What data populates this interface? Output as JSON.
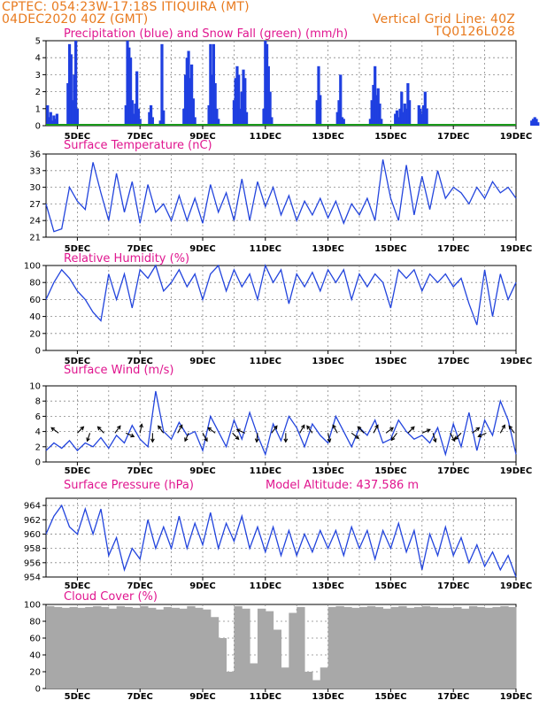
{
  "header": {
    "line1_left": "CPTEC:   054:23W-17:18S   ITIQUIRA (MT)",
    "line2_left": "04DEC2020 40Z (GMT)",
    "line2_right": "Vertical Grid Line: 40Z",
    "line3_right": "TQ0126L028"
  },
  "colors": {
    "title": "#e0168f",
    "header": "#e87a1e",
    "precip": "#1f3fe0",
    "snow": "#1a9a1a",
    "line": "#2244dd",
    "cloud": "#a8a8a8",
    "arrow": "#000000"
  },
  "chart_data": [
    {
      "type": "bar",
      "title": "Precipitation (blue) and Snow Fall (green) (mm/h)",
      "x_unit": "days from 04DEC2020 00Z",
      "x_ticks": [
        "5DEC",
        "7DEC",
        "9DEC",
        "11DEC",
        "13DEC",
        "15DEC",
        "17DEC",
        "19DEC"
      ],
      "xlim": [
        0,
        15
      ],
      "ylim": [
        0,
        5
      ],
      "yticks": [
        0,
        1,
        2,
        3,
        4,
        5
      ],
      "series": [
        {
          "name": "Precipitation",
          "x": [
            0.05,
            0.1,
            0.15,
            0.2,
            0.25,
            0.3,
            0.35,
            0.7,
            0.75,
            0.8,
            0.85,
            0.9,
            0.95,
            1.0,
            2.55,
            2.6,
            2.65,
            2.7,
            2.75,
            2.8,
            2.85,
            2.9,
            2.95,
            3.0,
            3.3,
            3.35,
            3.4,
            3.65,
            3.7,
            3.75,
            4.4,
            4.45,
            4.5,
            4.55,
            4.6,
            4.65,
            4.7,
            4.75,
            5.2,
            5.25,
            5.3,
            5.35,
            5.4,
            5.45,
            5.5,
            6.0,
            6.05,
            6.1,
            6.15,
            6.2,
            6.25,
            6.3,
            6.35,
            6.4,
            6.95,
            7.0,
            7.05,
            7.1,
            7.15,
            7.2,
            8.65,
            8.7,
            8.75,
            9.3,
            9.35,
            9.4,
            9.45,
            9.5,
            10.35,
            10.4,
            10.45,
            10.5,
            10.55,
            10.6,
            10.65,
            10.7,
            11.15,
            11.2,
            11.25,
            11.3,
            11.35,
            11.4,
            11.45,
            11.5,
            11.55,
            11.6,
            11.9,
            11.95,
            12.0,
            12.05,
            12.1,
            12.15,
            15.5,
            15.55,
            15.6,
            15.65,
            15.7
          ],
          "values": [
            1.2,
            0.5,
            0.8,
            0.3,
            0.6,
            0.4,
            0.7,
            2.5,
            4.8,
            4.2,
            1.5,
            3.0,
            5.0,
            1.0,
            1.2,
            5.0,
            4.6,
            4.0,
            1.5,
            0.7,
            1.3,
            3.2,
            1.0,
            0.4,
            0.8,
            1.2,
            0.5,
            0.3,
            4.8,
            0.9,
            1.0,
            3.0,
            4.0,
            4.4,
            2.8,
            3.6,
            1.6,
            0.5,
            1.2,
            4.8,
            3.0,
            4.8,
            2.5,
            1.0,
            0.4,
            1.5,
            2.8,
            3.5,
            3.0,
            1.0,
            2.0,
            3.3,
            2.8,
            0.8,
            1.0,
            5.0,
            4.8,
            3.5,
            2.0,
            0.5,
            1.5,
            3.5,
            1.8,
            0.8,
            1.5,
            3.0,
            0.5,
            0.4,
            0.4,
            1.5,
            2.4,
            3.5,
            1.8,
            2.2,
            1.3,
            0.4,
            0.7,
            0.9,
            0.5,
            1.0,
            2.0,
            0.8,
            1.3,
            1.0,
            2.5,
            1.5,
            1.2,
            1.0,
            0.7,
            1.2,
            2.0,
            1.0,
            0.3,
            0.4,
            0.5,
            0.4,
            0.2
          ]
        },
        {
          "name": "Snow Fall",
          "x": [
            0,
            15
          ],
          "values": [
            0.05,
            0.05
          ]
        }
      ]
    },
    {
      "type": "line",
      "title": "Surface Temperature (nC)",
      "xlim": [
        0,
        15
      ],
      "ylim": [
        21,
        36
      ],
      "yticks": [
        21,
        24,
        27,
        30,
        33,
        36
      ],
      "series": [
        {
          "name": "Temperature",
          "x": [
            0,
            0.25,
            0.5,
            0.75,
            1,
            1.25,
            1.5,
            1.75,
            2,
            2.25,
            2.5,
            2.75,
            3,
            3.25,
            3.5,
            3.75,
            4,
            4.25,
            4.5,
            4.75,
            5,
            5.25,
            5.5,
            5.75,
            6,
            6.25,
            6.5,
            6.75,
            7,
            7.25,
            7.5,
            7.75,
            8,
            8.25,
            8.5,
            8.75,
            9,
            9.25,
            9.5,
            9.75,
            10,
            10.25,
            10.5,
            10.75,
            11,
            11.25,
            11.5,
            11.75,
            12,
            12.25,
            12.5,
            12.75,
            13,
            13.25,
            13.5,
            13.75,
            14,
            14.25,
            14.5,
            14.75,
            15
          ],
          "values": [
            27,
            22,
            22.5,
            30,
            27.5,
            26,
            34.5,
            29,
            24,
            32.5,
            25.5,
            31,
            23.5,
            30.5,
            25.5,
            27,
            24,
            28.5,
            24,
            28,
            23.5,
            30.5,
            25.5,
            29,
            24,
            31.5,
            24,
            31,
            26.5,
            30,
            25,
            28.5,
            24,
            27.5,
            25,
            28,
            24.5,
            27.5,
            23.5,
            27,
            25,
            28,
            24,
            35,
            28,
            24,
            34,
            25,
            32,
            26,
            33,
            28,
            30,
            29,
            27,
            30,
            28,
            31,
            29,
            30,
            28
          ]
        }
      ]
    },
    {
      "type": "line",
      "title": "Relative Humidity (%)",
      "xlim": [
        0,
        15
      ],
      "ylim": [
        0,
        100
      ],
      "yticks": [
        0,
        20,
        40,
        60,
        80,
        100
      ],
      "series": [
        {
          "name": "Relative Humidity",
          "x": [
            0,
            0.25,
            0.5,
            0.75,
            1,
            1.25,
            1.5,
            1.75,
            2,
            2.25,
            2.5,
            2.75,
            3,
            3.25,
            3.5,
            3.75,
            4,
            4.25,
            4.5,
            4.75,
            5,
            5.25,
            5.5,
            5.75,
            6,
            6.25,
            6.5,
            6.75,
            7,
            7.25,
            7.5,
            7.75,
            8,
            8.25,
            8.5,
            8.75,
            9,
            9.25,
            9.5,
            9.75,
            10,
            10.25,
            10.5,
            10.75,
            11,
            11.25,
            11.5,
            11.75,
            12,
            12.25,
            12.5,
            12.75,
            13,
            13.25,
            13.5,
            13.75,
            14,
            14.25,
            14.5,
            14.75,
            15
          ],
          "values": [
            60,
            80,
            95,
            85,
            70,
            60,
            45,
            35,
            90,
            60,
            90,
            50,
            95,
            85,
            100,
            70,
            80,
            95,
            75,
            90,
            60,
            90,
            100,
            70,
            95,
            75,
            90,
            60,
            100,
            80,
            95,
            55,
            90,
            75,
            92,
            70,
            95,
            80,
            95,
            60,
            90,
            75,
            90,
            80,
            50,
            95,
            85,
            95,
            70,
            90,
            80,
            90,
            75,
            85,
            55,
            30,
            95,
            40,
            90,
            60,
            80
          ]
        }
      ]
    },
    {
      "type": "line",
      "title": "Surface Wind (m/s)",
      "xlim": [
        0,
        15
      ],
      "ylim": [
        0,
        10
      ],
      "yticks": [
        0,
        2,
        4,
        6,
        8,
        10
      ],
      "series": [
        {
          "name": "Wind speed",
          "x": [
            0,
            0.25,
            0.5,
            0.75,
            1,
            1.25,
            1.5,
            1.75,
            2,
            2.25,
            2.5,
            2.75,
            3,
            3.25,
            3.5,
            3.75,
            4,
            4.25,
            4.5,
            4.75,
            5,
            5.25,
            5.5,
            5.75,
            6,
            6.25,
            6.5,
            6.75,
            7,
            7.25,
            7.5,
            7.75,
            8,
            8.25,
            8.5,
            8.75,
            9,
            9.25,
            9.5,
            9.75,
            10,
            10.25,
            10.5,
            10.75,
            11,
            11.25,
            11.5,
            11.75,
            12,
            12.25,
            12.5,
            12.75,
            13,
            13.25,
            13.5,
            13.75,
            14,
            14.25,
            14.5,
            14.75,
            15
          ],
          "values": [
            1.5,
            2.5,
            1.8,
            2.8,
            1.5,
            2.5,
            2.0,
            3.2,
            1.8,
            3.5,
            2.5,
            4.8,
            3.0,
            2.0,
            9.3,
            4.0,
            3.0,
            5.2,
            3.5,
            4.0,
            1.5,
            6.0,
            4.0,
            2.0,
            5.5,
            3.0,
            6.5,
            3.5,
            1.0,
            5.0,
            2.8,
            6.0,
            4.5,
            2.0,
            5.0,
            3.5,
            2.5,
            6.0,
            4.0,
            2.0,
            4.5,
            3.5,
            5.5,
            2.5,
            3.0,
            5.5,
            4.0,
            3.0,
            3.5,
            2.5,
            4.5,
            1.0,
            5.0,
            2.0,
            6.5,
            1.5,
            5.5,
            3.5,
            8.0,
            5.5,
            1.0
          ]
        }
      ],
      "arrows": [
        {
          "x": 0.4,
          "u": -0.8,
          "v": 0.6
        },
        {
          "x": 1.0,
          "u": 0.7,
          "v": 0.7
        },
        {
          "x": 1.4,
          "u": -0.3,
          "v": -0.9
        },
        {
          "x": 1.85,
          "u": -0.7,
          "v": 0.7
        },
        {
          "x": 2.2,
          "u": 0.6,
          "v": 0.8
        },
        {
          "x": 2.55,
          "u": 0.9,
          "v": -0.4
        },
        {
          "x": 3.0,
          "u": 0.2,
          "v": 1.0
        },
        {
          "x": 3.4,
          "u": 0,
          "v": -1
        },
        {
          "x": 3.75,
          "u": -0.6,
          "v": 0.8
        },
        {
          "x": 4.2,
          "u": 0.5,
          "v": 0.9
        },
        {
          "x": 4.55,
          "u": -0.4,
          "v": -0.9
        },
        {
          "x": 5.0,
          "u": 0.5,
          "v": -0.9
        },
        {
          "x": 5.4,
          "u": -0.8,
          "v": 0.6
        },
        {
          "x": 5.95,
          "u": 0.7,
          "v": -0.7
        },
        {
          "x": 6.35,
          "u": -0.9,
          "v": 0.4
        },
        {
          "x": 6.75,
          "u": -0.1,
          "v": -1
        },
        {
          "x": 7.2,
          "u": 0.6,
          "v": 0.8
        },
        {
          "x": 7.65,
          "u": 0,
          "v": -1
        },
        {
          "x": 8.1,
          "u": 0.5,
          "v": 0.9
        },
        {
          "x": 8.5,
          "u": -0.6,
          "v": 0.8
        },
        {
          "x": 9.0,
          "u": 0.2,
          "v": -1
        },
        {
          "x": 9.3,
          "u": -0.5,
          "v": 0.9
        },
        {
          "x": 9.75,
          "u": 0.8,
          "v": -0.6
        },
        {
          "x": 10.15,
          "u": -0.7,
          "v": 0.7
        },
        {
          "x": 10.45,
          "u": 0.5,
          "v": 0.9
        },
        {
          "x": 10.85,
          "u": 0.8,
          "v": 0.6
        },
        {
          "x": 11.2,
          "u": -0.6,
          "v": -0.8
        },
        {
          "x": 11.55,
          "u": 0.7,
          "v": 0.7
        },
        {
          "x": 12.0,
          "u": 0.9,
          "v": 0.4
        },
        {
          "x": 12.35,
          "u": 0.3,
          "v": -1
        },
        {
          "x": 12.9,
          "u": 0.5,
          "v": -0.9
        },
        {
          "x": 13.25,
          "u": -0.7,
          "v": -0.7
        },
        {
          "x": 13.6,
          "u": 0.8,
          "v": 0.6
        },
        {
          "x": 14.05,
          "u": -0.9,
          "v": -0.4
        },
        {
          "x": 14.5,
          "u": 0.5,
          "v": 0.9
        },
        {
          "x": 14.95,
          "u": -0.6,
          "v": 0.8
        }
      ]
    },
    {
      "type": "line",
      "title": "Surface Pressure (hPa)",
      "annotation": "Model Altitude: 437.586 m",
      "xlim": [
        0,
        15
      ],
      "ylim": [
        954,
        965
      ],
      "yticks": [
        954,
        956,
        958,
        960,
        962,
        964
      ],
      "series": [
        {
          "name": "Pressure",
          "x": [
            0,
            0.25,
            0.5,
            0.75,
            1,
            1.25,
            1.5,
            1.75,
            2,
            2.25,
            2.5,
            2.75,
            3,
            3.25,
            3.5,
            3.75,
            4,
            4.25,
            4.5,
            4.75,
            5,
            5.25,
            5.5,
            5.75,
            6,
            6.25,
            6.5,
            6.75,
            7,
            7.25,
            7.5,
            7.75,
            8,
            8.25,
            8.5,
            8.75,
            9,
            9.25,
            9.5,
            9.75,
            10,
            10.25,
            10.5,
            10.75,
            11,
            11.25,
            11.5,
            11.75,
            12,
            12.25,
            12.5,
            12.75,
            13,
            13.25,
            13.5,
            13.75,
            14,
            14.25,
            14.5,
            14.75,
            15
          ],
          "values": [
            960,
            962.5,
            964,
            961,
            960,
            963.5,
            960,
            963.5,
            957,
            959.5,
            955,
            958,
            956.5,
            962,
            958,
            961,
            958,
            962.5,
            958,
            961.5,
            958.5,
            963,
            958,
            961.5,
            959,
            962.5,
            958,
            961,
            957.5,
            961,
            957,
            960.5,
            957,
            960,
            957.5,
            960.5,
            958,
            960.5,
            957,
            961,
            958,
            960.5,
            956.5,
            960.5,
            958,
            961.5,
            957.5,
            960.5,
            955,
            960,
            957,
            961,
            957,
            959.5,
            956,
            958.5,
            955.5,
            957.5,
            955,
            957,
            954
          ]
        }
      ]
    },
    {
      "type": "bar",
      "title": "Cloud Cover (%)",
      "xlim": [
        0,
        15
      ],
      "ylim": [
        0,
        100
      ],
      "yticks": [
        0,
        20,
        40,
        60,
        80,
        100
      ],
      "series": [
        {
          "name": "Cloud Cover",
          "x": [
            0,
            0.25,
            0.5,
            0.75,
            1,
            1.25,
            1.5,
            1.75,
            2,
            2.25,
            2.5,
            2.75,
            3,
            3.25,
            3.5,
            3.75,
            4,
            4.25,
            4.5,
            4.75,
            5,
            5.25,
            5.5,
            5.75,
            6,
            6.25,
            6.5,
            6.75,
            7,
            7.25,
            7.5,
            7.75,
            8,
            8.25,
            8.5,
            8.75,
            9,
            9.25,
            9.5,
            9.75,
            10,
            10.25,
            10.5,
            10.75,
            11,
            11.25,
            11.5,
            11.75,
            12,
            12.25,
            12.5,
            12.75,
            13,
            13.25,
            13.5,
            13.75,
            14,
            14.25,
            14.5,
            14.75
          ],
          "values": [
            98,
            97,
            96,
            97,
            96,
            97,
            98,
            97,
            95,
            98,
            97,
            96,
            98,
            96,
            94,
            97,
            96,
            95,
            98,
            96,
            94,
            85,
            60,
            20,
            98,
            95,
            30,
            95,
            92,
            70,
            25,
            90,
            97,
            20,
            10,
            25,
            97,
            98,
            97,
            96,
            97,
            98,
            97,
            95,
            97,
            98,
            96,
            97,
            98,
            97,
            96,
            96,
            97,
            95,
            98,
            97,
            96,
            97,
            98,
            97
          ]
        }
      ]
    }
  ]
}
